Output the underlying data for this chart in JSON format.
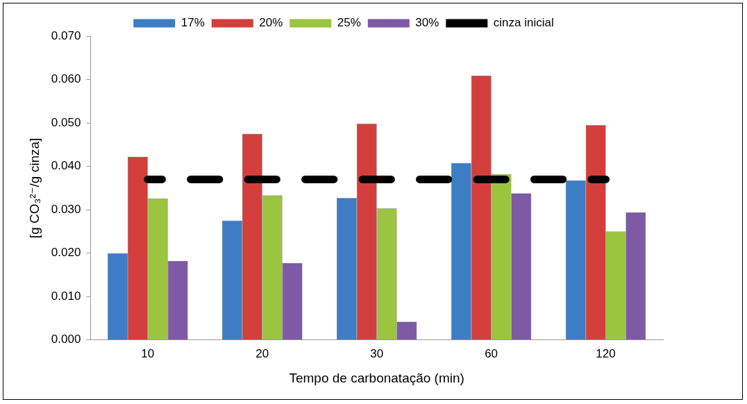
{
  "chart_data": {
    "type": "bar",
    "categories": [
      "10",
      "20",
      "30",
      "60",
      "120"
    ],
    "xlabel": "Tempo de carbonatação (min)",
    "ylabel": "[g CO₃²⁻/g cinza]",
    "series": [
      {
        "name": "17%",
        "color": "#3c7dc6",
        "values": [
          0.02,
          0.0275,
          0.0327,
          0.0408,
          0.0368
        ]
      },
      {
        "name": "20%",
        "color": "#d23f3c",
        "values": [
          0.0422,
          0.0475,
          0.0498,
          0.0609,
          0.0495
        ]
      },
      {
        "name": "25%",
        "color": "#9bc43f",
        "values": [
          0.0326,
          0.0333,
          0.0303,
          0.0382,
          0.025
        ]
      },
      {
        "name": "30%",
        "color": "#7d59a6",
        "values": [
          0.0182,
          0.0177,
          0.0042,
          0.0338,
          0.0294
        ]
      },
      {
        "name": "cinza inicial",
        "type": "line",
        "color": "#000000",
        "line_style": "dashed",
        "marker": "none",
        "values": [
          0.037,
          0.037,
          0.037,
          0.037,
          0.037
        ]
      }
    ],
    "ylim": [
      0,
      0.07
    ],
    "yticks": [
      {
        "value": 0,
        "label": "0.000"
      },
      {
        "value": 0.01,
        "label": "0.010"
      },
      {
        "value": 0.02,
        "label": "0.020"
      },
      {
        "value": 0.03,
        "label": "0.030"
      },
      {
        "value": 0.04,
        "label": "0.040"
      },
      {
        "value": 0.05,
        "label": "0.050"
      },
      {
        "value": 0.06,
        "label": "0.060"
      },
      {
        "value": 0.07,
        "label": "0.070"
      }
    ],
    "grid": false,
    "legend": "top"
  }
}
